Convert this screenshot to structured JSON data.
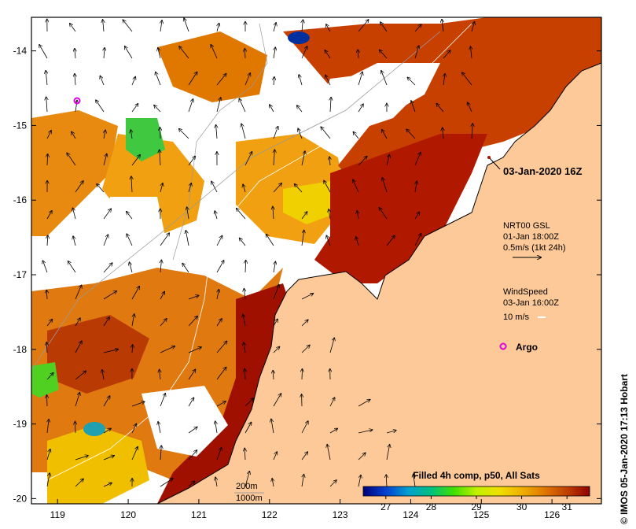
{
  "map": {
    "title": "Filled 4h comp, p50, All Sats",
    "timestamp": "03-Jan-2020 16Z",
    "credit": "© IMOS 05-Jan-2020 17:13 Hobart",
    "x_axis": {
      "ticks": [
        119,
        120,
        121,
        122,
        123,
        124,
        125,
        126
      ],
      "range": [
        118.63,
        126.7
      ]
    },
    "y_axis": {
      "ticks": [
        -14,
        -15,
        -16,
        -17,
        -18,
        -19,
        -20
      ],
      "range": [
        -20.07,
        -13.55
      ]
    },
    "colorbar": {
      "ticks": [
        27,
        28,
        29,
        30,
        31
      ],
      "range": [
        26.5,
        31.5
      ],
      "colors": [
        "#00007a",
        "#0040d0",
        "#00a0d0",
        "#00c080",
        "#40e000",
        "#c0f000",
        "#f0e000",
        "#f0b000",
        "#e07800",
        "#c04000",
        "#900000"
      ]
    },
    "legend": {
      "gsl_title": "NRT00 GSL",
      "gsl_date": "01-Jan 18:00Z",
      "gsl_scale": "0.5m/s (1kt 24h)",
      "wind_title": "WindSpeed",
      "wind_date": "03-Jan 16:00Z",
      "wind_scale": "10 m/s",
      "argo_label": "Argo"
    },
    "contours": {
      "label_200": "200m",
      "label_1000": "1000m"
    },
    "colors": {
      "land": "#fdc998",
      "frame": "#000000",
      "warm_sst": "#e07800",
      "hot_sst": "#a81200",
      "argo": "#e000e0"
    }
  }
}
